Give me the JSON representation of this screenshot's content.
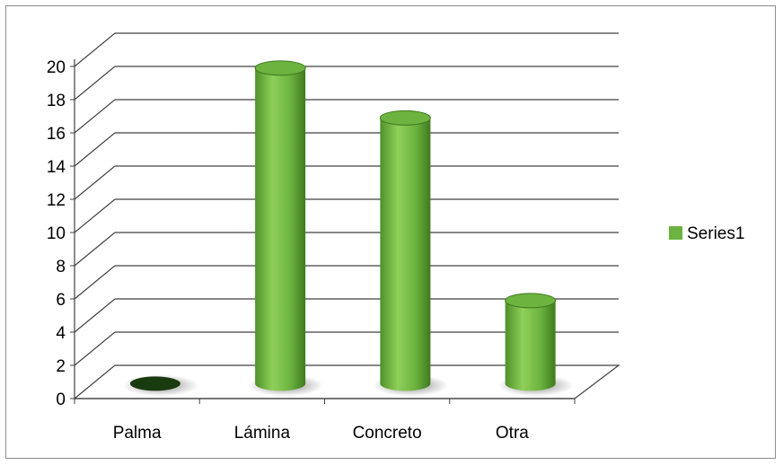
{
  "chart_data": {
    "type": "bar",
    "style": "3d-cylinder",
    "categories": [
      "Palma",
      "Lámina",
      "Concreto",
      "Otra"
    ],
    "series": [
      {
        "name": "Series1",
        "values": [
          0,
          19,
          16,
          5
        ]
      }
    ],
    "ylim": [
      0,
      20
    ],
    "yticks": [
      0,
      2,
      4,
      6,
      8,
      10,
      12,
      14,
      16,
      18,
      20
    ],
    "grid": true,
    "legend": "right",
    "colors": {
      "series": "#6cb33f",
      "series_dark": "#3f7a1e",
      "series_light": "#92cf5c",
      "grid": "#404040",
      "empty_bar": "#1a3a10"
    }
  }
}
